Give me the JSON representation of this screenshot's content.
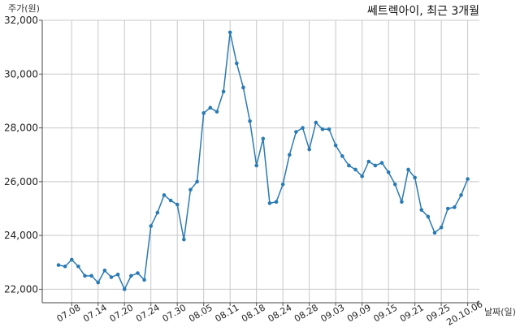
{
  "chart_data": {
    "type": "line",
    "title": "쎄트렉아이, 최근 3개월",
    "xlabel": "날짜(일)",
    "ylabel": "주가(원)",
    "ylim": [
      21500,
      32000
    ],
    "yticks": [
      22000,
      24000,
      26000,
      28000,
      30000,
      32000
    ],
    "ytick_labels": [
      "22,000",
      "24,000",
      "26,000",
      "28,000",
      "30,000",
      "32,000"
    ],
    "xticks": [
      "07.08",
      "07.14",
      "07.20",
      "07.24",
      "07.30",
      "08.05",
      "08.11",
      "08.18",
      "08.24",
      "08.28",
      "09.03",
      "09.09",
      "09.15",
      "09.21",
      "09.25",
      "20.10.06"
    ],
    "xtick_positions": [
      2,
      6,
      10,
      14,
      18,
      22,
      26,
      30,
      34,
      38,
      42,
      46,
      50,
      54,
      58,
      62
    ],
    "grid": true,
    "color": "#2a7ab3",
    "series": [
      {
        "values": [
          22900,
          22850,
          23100,
          22850,
          22500,
          22500,
          22250,
          22700,
          22450,
          22550,
          22000,
          22500,
          22600,
          22350,
          24350,
          24850,
          25500,
          25300,
          25150,
          23850,
          25700,
          26000,
          28550,
          28750,
          28600,
          29350,
          31550,
          30400,
          29500,
          28250,
          26600,
          27600,
          25200,
          25250,
          25900,
          27000,
          27850,
          28000,
          27200,
          28200,
          27950,
          27950,
          27350,
          26950,
          26600,
          26450,
          26200,
          26750,
          26600,
          26700,
          26350,
          25900,
          25250,
          26450,
          26150,
          24950,
          24700,
          24100,
          24300,
          25000,
          25050,
          25500,
          26100
        ]
      }
    ]
  }
}
